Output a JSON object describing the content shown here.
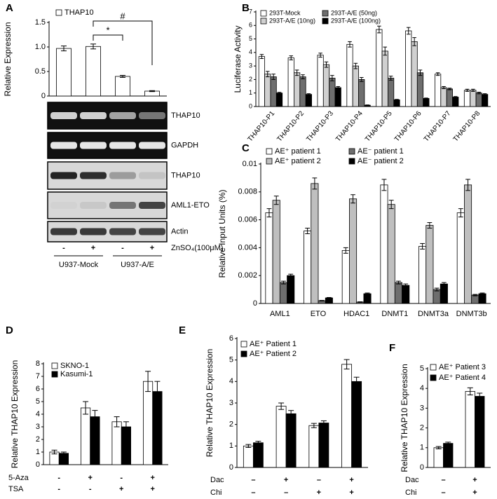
{
  "panels": [
    "A",
    "B",
    "C",
    "D",
    "E",
    "F"
  ],
  "gels": {
    "labels": [
      "THAP10",
      "GAPDH",
      "THAP10",
      "AML1-ETO",
      "Actin"
    ]
  },
  "chart_data": [
    {
      "type": "bar",
      "ylabel": "Relative Expression",
      "series": [
        {
          "name": "THAP10",
          "color": "#ffffff",
          "values": [
            0.97,
            1.01,
            0.4,
            0.1
          ],
          "errors": [
            0.05,
            0.05,
            0.02,
            0.01
          ]
        }
      ],
      "ylim": [
        0,
        1.5
      ],
      "yticks": [
        0,
        0.5,
        {
          "value": 1,
          "label": "1.0"
        },
        1.5
      ],
      "annotations": [
        "*",
        "#"
      ],
      "conditions": [
        {
          "label": "ZnSO₄(100μM)",
          "values": [
            "-",
            "+",
            "-",
            "+"
          ]
        }
      ],
      "groups": [
        "U937-Mock",
        "U937-A/E"
      ]
    },
    {
      "type": "bar",
      "ylabel": "Luciferase Activity",
      "categories": [
        "THAP10-P1",
        "THAP10-P2",
        "THAP10-P3",
        "THAP10-P4",
        "THAP10-P5",
        "THAP10-P6",
        "THAP10-P7",
        "THAP10-P8"
      ],
      "series": [
        {
          "name": "293T-Mock",
          "color": "#ffffff",
          "values": [
            3.7,
            3.6,
            3.8,
            4.6,
            5.7,
            5.6,
            2.4,
            1.2
          ],
          "errors": [
            0.15,
            0.15,
            0.15,
            0.2,
            0.25,
            0.25,
            0.1,
            0.08
          ]
        },
        {
          "name": "293T-A/E (10ng)",
          "color": "#d0d0d0",
          "values": [
            2.4,
            2.5,
            3.1,
            3.0,
            4.1,
            4.8,
            1.4,
            1.2
          ],
          "errors": [
            0.2,
            0.2,
            0.2,
            0.2,
            0.3,
            0.3,
            0.08,
            0.08
          ]
        },
        {
          "name": "293T-A/E (50ng)",
          "color": "#6e6e6e",
          "values": [
            2.2,
            2.2,
            2.1,
            2.0,
            2.1,
            2.5,
            1.3,
            1.0
          ],
          "errors": [
            0.2,
            0.15,
            0.2,
            0.15,
            0.15,
            0.2,
            0.06,
            0.06
          ]
        },
        {
          "name": "293T-A/E (100ng)",
          "color": "#000000",
          "values": [
            1.0,
            0.9,
            1.4,
            0.1,
            0.5,
            0.6,
            0.7,
            0.9
          ],
          "errors": [
            0.05,
            0.05,
            0.08,
            0.02,
            0.03,
            0.03,
            0.04,
            0.05
          ]
        }
      ],
      "ylim": [
        0,
        7
      ],
      "yticks": [
        0,
        1,
        2,
        3,
        4,
        5,
        6,
        7
      ]
    },
    {
      "type": "bar",
      "ylabel": "Relative Input Units (%)",
      "categories": [
        "AML1",
        "ETO",
        "HDAC1",
        "DNMT1",
        "DNMT3a",
        "DNMT3b"
      ],
      "series": [
        {
          "name": "AE⁺ patient 1",
          "color": "#ffffff",
          "values": [
            0.0065,
            0.0052,
            0.0038,
            0.0085,
            0.0041,
            0.0065
          ],
          "errors": [
            0.0003,
            0.0002,
            0.0002,
            0.0004,
            0.0002,
            0.0003
          ]
        },
        {
          "name": "AE⁺ patient 2",
          "color": "#bfbfbf",
          "values": [
            0.0074,
            0.0086,
            0.0075,
            0.0071,
            0.0056,
            0.0085
          ],
          "errors": [
            0.0003,
            0.0004,
            0.0003,
            0.0003,
            0.0002,
            0.0004
          ]
        },
        {
          "name": "AE⁻ patient 1",
          "color": "#6e6e6e",
          "values": [
            0.0015,
            0.0002,
            0.0001,
            0.0015,
            0.001,
            0.0006
          ],
          "errors": [
            0.0001,
            2e-05,
            2e-05,
            0.0001,
            0.0001,
            5e-05
          ]
        },
        {
          "name": "AE⁻ patient 2",
          "color": "#000000",
          "values": [
            0.002,
            0.0004,
            0.0007,
            0.0013,
            0.0014,
            0.0007
          ],
          "errors": [
            0.0001,
            3e-05,
            5e-05,
            0.0001,
            0.0001,
            5e-05
          ]
        }
      ],
      "ylim": [
        0,
        0.01
      ],
      "yticks": [
        0,
        0.002,
        0.004,
        0.006,
        0.008,
        0.01
      ]
    },
    {
      "type": "bar",
      "ylabel": "Relative THAP10 Expression",
      "series": [
        {
          "name": "SKNO-1",
          "color": "#ffffff",
          "values": [
            1.0,
            4.5,
            3.4,
            6.6
          ],
          "errors": [
            0.15,
            0.5,
            0.4,
            0.8
          ]
        },
        {
          "name": "Kasumi-1",
          "color": "#000000",
          "values": [
            0.9,
            3.8,
            3.0,
            5.8
          ],
          "errors": [
            0.1,
            0.5,
            0.4,
            0.8
          ]
        }
      ],
      "ylim": [
        0,
        8
      ],
      "yticks": [
        0,
        1,
        2,
        3,
        4,
        5,
        6,
        7,
        8
      ],
      "conditions": [
        {
          "label": "5-Aza",
          "values": [
            "-",
            "+",
            "-",
            "+"
          ]
        },
        {
          "label": "TSA",
          "values": [
            "-",
            "-",
            "+",
            "+"
          ]
        }
      ]
    },
    {
      "type": "bar",
      "ylabel": "Relative THAP10 Expression",
      "series": [
        {
          "name": "AE⁺ Patient 1",
          "color": "#ffffff",
          "values": [
            1.0,
            2.85,
            1.95,
            4.8
          ],
          "errors": [
            0.07,
            0.15,
            0.1,
            0.22
          ]
        },
        {
          "name": "AE⁺ Patient 2",
          "color": "#000000",
          "values": [
            1.15,
            2.5,
            2.07,
            4.0
          ],
          "errors": [
            0.07,
            0.15,
            0.1,
            0.2
          ]
        }
      ],
      "ylim": [
        0,
        6
      ],
      "yticks": [
        0,
        1,
        2,
        3,
        4,
        5,
        6
      ],
      "conditions": [
        {
          "label": "Dac",
          "values": [
            "–",
            "+",
            "–",
            "+"
          ]
        },
        {
          "label": "Chi",
          "values": [
            "–",
            "–",
            "+",
            "+"
          ]
        }
      ]
    },
    {
      "type": "bar",
      "ylabel": "Relative THAP10 Expression",
      "series": [
        {
          "name": "AE⁺ Patient 3",
          "color": "#ffffff",
          "values": [
            1.0,
            3.85
          ],
          "errors": [
            0.06,
            0.18
          ]
        },
        {
          "name": "AE⁺ Patient 4",
          "color": "#000000",
          "values": [
            1.22,
            3.6
          ],
          "errors": [
            0.06,
            0.16
          ]
        }
      ],
      "ylim": [
        0,
        5
      ],
      "yticks": [
        0,
        1,
        2,
        3,
        4,
        5
      ],
      "conditions": [
        {
          "label": "Dac",
          "values": [
            "–",
            "+"
          ]
        },
        {
          "label": "Chi",
          "values": [
            "–",
            "+"
          ]
        }
      ]
    }
  ]
}
